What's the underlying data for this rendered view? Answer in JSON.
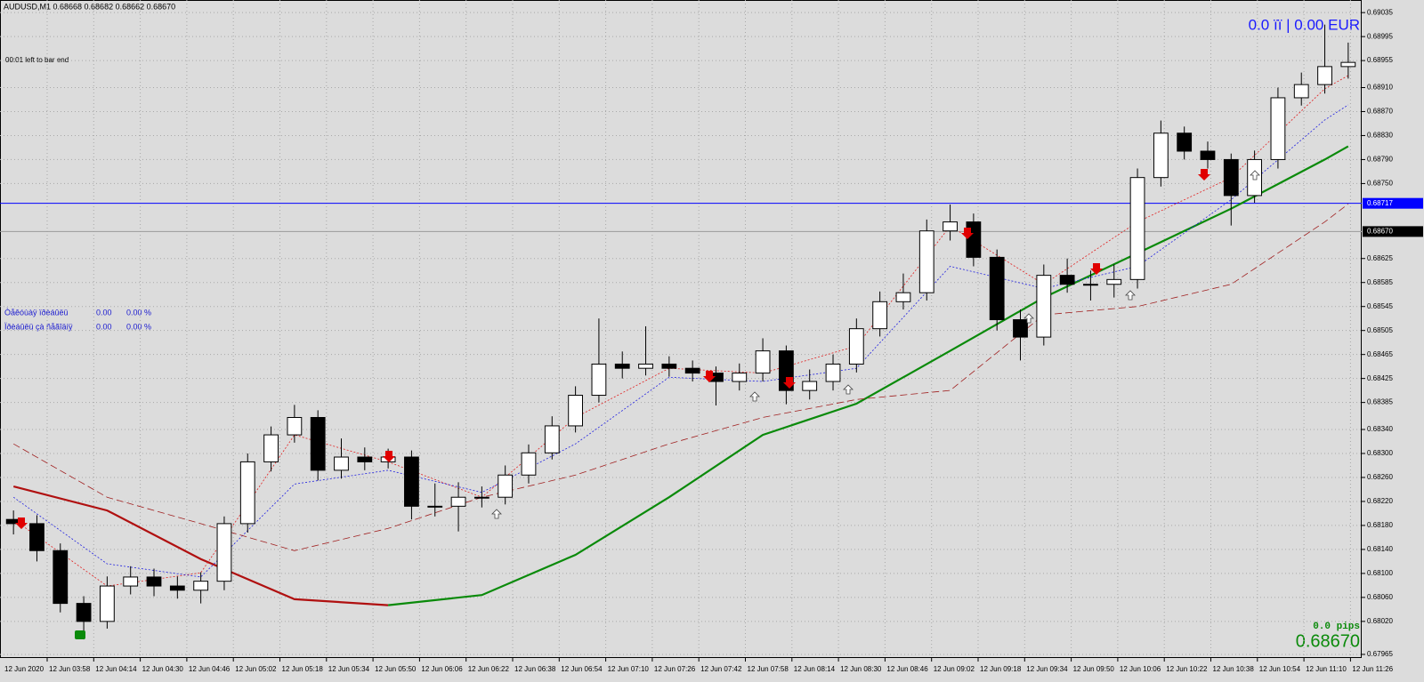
{
  "header": "AUDUSD,M1  0.68668 0.68682 0.68662 0.68670",
  "timer": "00:01 left to bar end",
  "account": "0.0 ïï | 0.00 EUR",
  "profit_table": [
    [
      "Òåêóùàÿ ïðèáûëü",
      "0.00",
      "0.00 %"
    ],
    [
      "Ïðèáûëü çà ñåãîäíÿ",
      "0.00",
      "0.00 %"
    ]
  ],
  "pips": "0.0 pips",
  "price": "0.68670",
  "chart_data": {
    "type": "candlestick",
    "ylim": [
      0.67959,
      0.69056
    ],
    "yticks": [
      0.69035,
      0.68995,
      0.68955,
      {
        "value": 0.6891,
        "label": "0.68910"
      },
      {
        "value": 0.6887,
        "label": "0.68870"
      },
      {
        "value": 0.6883,
        "label": "0.68830"
      },
      {
        "value": 0.6879,
        "label": "0.68790"
      },
      {
        "value": 0.6875,
        "label": "0.68750"
      },
      0.68625,
      0.68585,
      0.68545,
      0.68505,
      0.68465,
      0.68425,
      0.68385,
      {
        "value": 0.6834,
        "label": "0.68340"
      },
      {
        "value": 0.683,
        "label": "0.68300"
      },
      {
        "value": 0.6826,
        "label": "0.68260"
      },
      {
        "value": 0.6822,
        "label": "0.68220"
      },
      {
        "value": 0.6818,
        "label": "0.68180"
      },
      {
        "value": 0.6814,
        "label": "0.68140"
      },
      {
        "value": 0.681,
        "label": "0.68100"
      },
      {
        "value": 0.6806,
        "label": "0.68060"
      },
      {
        "value": 0.6802,
        "label": "0.68020"
      },
      0.67965
    ],
    "grid": true,
    "x_labels": [
      "12 Jun 2020",
      "12 Jun 03:58",
      "12 Jun 04:14",
      "12 Jun 04:30",
      "12 Jun 04:46",
      "12 Jun 05:02",
      "12 Jun 05:18",
      "12 Jun 05:34",
      "12 Jun 05:50",
      "12 Jun 06:06",
      "12 Jun 06:22",
      "12 Jun 06:38",
      "12 Jun 06:54",
      "12 Jun 07:10",
      "12 Jun 07:26",
      "12 Jun 07:42",
      "12 Jun 07:58",
      "12 Jun 08:14",
      "12 Jun 08:30",
      "12 Jun 08:46",
      "12 Jun 09:02",
      "12 Jun 09:18",
      "12 Jun 09:34",
      "12 Jun 09:50",
      "12 Jun 10:06",
      "12 Jun 10:22",
      "12 Jun 10:38",
      "12 Jun 10:54",
      "12 Jun 11:10",
      "12 Jun 11:26"
    ],
    "up_color": "#ffffff",
    "down_color": "#000000",
    "open": [
      0.6819,
      0.68183,
      0.68138,
      0.6805,
      0.6802,
      0.68079,
      0.68094,
      0.68079,
      0.68072,
      0.68087,
      0.68183,
      0.68286,
      0.68331,
      0.6836,
      0.68272,
      0.68294,
      0.68286,
      0.68294,
      0.68212,
      0.68212,
      0.68227,
      0.68227,
      0.68264,
      0.68301,
      0.68346,
      0.68397,
      0.68449,
      0.68442,
      0.68449,
      0.68442,
      0.68434,
      0.6842,
      0.68434,
      0.68471,
      0.68405,
      0.6842,
      0.68449,
      0.68508,
      0.68553,
      0.68568,
      0.68671,
      0.68686,
      0.68627,
      0.68523,
      0.68494,
      0.68597,
      0.68582,
      0.68582,
      0.6859,
      0.6876,
      0.68834,
      0.68804,
      0.6879,
      0.6873,
      0.6879,
      0.68893,
      0.68915,
      0.68945
    ],
    "high": [
      0.68205,
      0.68197,
      0.6815,
      0.68062,
      0.68095,
      0.68112,
      0.68108,
      0.68095,
      0.68102,
      0.68195,
      0.683,
      0.68345,
      0.68381,
      0.68372,
      0.68325,
      0.6831,
      0.68308,
      0.68305,
      0.6825,
      0.68252,
      0.68245,
      0.6828,
      0.68315,
      0.68362,
      0.68412,
      0.68525,
      0.6847,
      0.68512,
      0.68462,
      0.68455,
      0.68445,
      0.6845,
      0.68492,
      0.6848,
      0.6844,
      0.68465,
      0.68525,
      0.6857,
      0.686,
      0.6869,
      0.68715,
      0.687,
      0.6864,
      0.6854,
      0.68615,
      0.68625,
      0.68605,
      0.68615,
      0.68775,
      0.68855,
      0.68845,
      0.6882,
      0.688,
      0.68805,
      0.6891,
      0.68935,
      0.69015,
      0.68985
    ],
    "low": [
      0.68165,
      0.6812,
      0.68035,
      0.6799,
      0.68008,
      0.68065,
      0.68062,
      0.68058,
      0.6805,
      0.68072,
      0.68168,
      0.6827,
      0.68318,
      0.68255,
      0.68258,
      0.68272,
      0.68275,
      0.6819,
      0.68195,
      0.6817,
      0.6821,
      0.68215,
      0.6825,
      0.6829,
      0.68335,
      0.68385,
      0.68425,
      0.6843,
      0.68428,
      0.6842,
      0.6838,
      0.68405,
      0.6842,
      0.68382,
      0.6839,
      0.68405,
      0.68435,
      0.68495,
      0.6854,
      0.68555,
      0.68655,
      0.68612,
      0.68505,
      0.68455,
      0.6848,
      0.68568,
      0.68555,
      0.6856,
      0.68575,
      0.68745,
      0.6879,
      0.68775,
      0.6868,
      0.68718,
      0.68775,
      0.6888,
      0.689,
      0.68925
    ],
    "close": [
      0.68183,
      0.68138,
      0.6805,
      0.6802,
      0.68079,
      0.68094,
      0.68079,
      0.68072,
      0.68087,
      0.68183,
      0.68286,
      0.68331,
      0.6836,
      0.68272,
      0.68294,
      0.68286,
      0.68294,
      0.68212,
      0.68212,
      0.68227,
      0.68227,
      0.68264,
      0.68301,
      0.68346,
      0.68397,
      0.68449,
      0.68442,
      0.68449,
      0.68442,
      0.68434,
      0.6842,
      0.68434,
      0.68471,
      0.68405,
      0.6842,
      0.68449,
      0.68508,
      0.68553,
      0.68568,
      0.68671,
      0.68686,
      0.68627,
      0.68523,
      0.68494,
      0.68597,
      0.68582,
      0.68582,
      0.6859,
      0.6876,
      0.68834,
      0.68804,
      0.6879,
      0.6873,
      0.6879,
      0.68893,
      0.68915,
      0.68945,
      0.68952
    ],
    "line_x": [
      0,
      4,
      8,
      12,
      16,
      20,
      24,
      28,
      32,
      36,
      40,
      44,
      48,
      52,
      56,
      57
    ],
    "lines": [
      {
        "color": "#b01010",
        "width": 2.2,
        "dash": "none",
        "values": [
          0.68245,
          0.68205,
          0.68124,
          0.68057,
          0.68047,
          null,
          null,
          null,
          null,
          null,
          null,
          null,
          null,
          null,
          null,
          null
        ]
      },
      {
        "color": "#0a8a0a",
        "width": 2.2,
        "dash": "none",
        "values": [
          null,
          null,
          null,
          null,
          0.68047,
          0.68064,
          0.68131,
          0.68227,
          0.68331,
          0.68383,
          0.68471,
          0.6856,
          0.68634,
          0.68708,
          0.6879,
          0.68812
        ]
      },
      {
        "color": "#e02020",
        "width": 0.8,
        "dash": "2,2",
        "values": [
          0.6819,
          0.68079,
          0.68101,
          0.68331,
          0.68286,
          0.68227,
          0.6836,
          0.68442,
          0.68434,
          0.68479,
          0.68679,
          0.68582,
          0.68686,
          0.6876,
          0.68908,
          0.6893
        ]
      },
      {
        "color": "#2020e0",
        "width": 0.8,
        "dash": "2,2",
        "values": [
          0.68227,
          0.68116,
          0.68094,
          0.68249,
          0.68272,
          0.68235,
          0.68316,
          0.68427,
          0.6842,
          0.68442,
          0.68612,
          0.68575,
          0.68612,
          0.68723,
          0.68856,
          0.68881
        ]
      },
      {
        "color": "#a02020",
        "width": 0.8,
        "dash": "8,4",
        "values": [
          0.68316,
          0.68227,
          0.68183,
          0.68138,
          0.68175,
          0.68227,
          0.68264,
          0.68316,
          0.6836,
          0.6839,
          0.68405,
          0.68531,
          0.68545,
          0.68582,
          0.68686,
          0.68716
        ]
      }
    ],
    "hlines": [
      {
        "value": 0.68717,
        "label": "0.68717",
        "color": "#0000ff"
      },
      {
        "value": 0.6867,
        "label": "0.68670",
        "color": "#9a9a9a"
      }
    ]
  }
}
